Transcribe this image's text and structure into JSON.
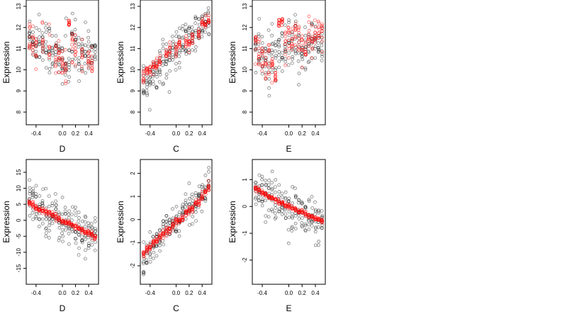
{
  "figure": {
    "background": "#ffffff",
    "colors": {
      "black_points": "#000000",
      "red_points": "#ff0000",
      "frame": "#000000"
    }
  },
  "chart_data": [
    {
      "type": "scatter",
      "ylabel": "Expression",
      "xlabel": "D",
      "xlim": [
        -0.55,
        0.55
      ],
      "ylim": [
        7.4,
        13.3
      ],
      "xticks": [
        -0.4,
        0.0,
        0.2,
        0.4
      ],
      "xtick_labels": [
        "-0.4",
        "0.0",
        "0.2",
        "0.4"
      ],
      "yticks": [
        8,
        9,
        10,
        11,
        12,
        13
      ],
      "ytick_labels": [
        "8",
        "9",
        "10",
        "11",
        "12",
        "13"
      ],
      "series": [
        {
          "color": "#000000",
          "x": [
            -0.5,
            -0.45,
            -0.4,
            -0.35,
            -0.3,
            -0.25,
            -0.2,
            -0.15,
            -0.1,
            -0.05,
            0.0,
            0.05,
            0.1,
            0.15,
            0.2,
            0.25,
            0.3,
            0.35,
            0.4,
            0.45,
            0.5
          ],
          "y": [
            11.6,
            11.4,
            11.3,
            11.5,
            11.2,
            11.3,
            11.0,
            11.1,
            10.7,
            10.4,
            10.5,
            10.4,
            10.2,
            11.1,
            11.2,
            10.8,
            10.9,
            10.7,
            11.0,
            10.9,
            10.6
          ],
          "spread": [
            0.9,
            0.8,
            1.1,
            1.0,
            1.0,
            1.1,
            1.2,
            1.3,
            1.1,
            1.0,
            1.2,
            1.4,
            1.1,
            1.2,
            1.1,
            1.0,
            1.0,
            1.1,
            1.0,
            0.9,
            0.9
          ]
        },
        {
          "color": "#ff0000",
          "x": [
            -0.5,
            -0.45,
            -0.4,
            -0.3,
            -0.2,
            -0.1,
            -0.05,
            0.0,
            0.05,
            0.1,
            0.15,
            0.2,
            0.3,
            0.4,
            0.45
          ],
          "y": [
            11.5,
            11.3,
            11.1,
            11.4,
            11.0,
            10.6,
            10.7,
            10.2,
            9.9,
            12.3,
            11.4,
            11.0,
            10.7,
            10.6,
            10.4
          ],
          "spread": [
            0.8,
            0.9,
            0.9,
            0.8,
            0.7,
            0.8,
            0.7,
            0.6,
            0.5,
            0.2,
            0.8,
            0.7,
            0.8,
            0.6,
            0.6
          ]
        }
      ]
    },
    {
      "type": "scatter",
      "ylabel": "Expression",
      "xlabel": "C",
      "xlim": [
        -0.55,
        0.55
      ],
      "ylim": [
        7.4,
        13.3
      ],
      "xticks": [
        -0.4,
        0.0,
        0.2,
        0.4
      ],
      "xtick_labels": [
        "-0.4",
        "0.0",
        "0.2",
        "0.4"
      ],
      "yticks": [
        8,
        9,
        10,
        11,
        12,
        13
      ],
      "ytick_labels": [
        "8",
        "9",
        "10",
        "11",
        "12",
        "13"
      ],
      "series": [
        {
          "color": "#000000",
          "x": [
            -0.5,
            -0.45,
            -0.4,
            -0.35,
            -0.3,
            -0.25,
            -0.2,
            -0.15,
            -0.1,
            -0.05,
            0.0,
            0.05,
            0.1,
            0.15,
            0.2,
            0.25,
            0.3,
            0.35,
            0.4,
            0.45,
            0.5
          ],
          "y": [
            9.3,
            9.5,
            9.6,
            9.8,
            10.0,
            10.2,
            10.4,
            10.5,
            10.6,
            10.8,
            10.9,
            11.0,
            11.2,
            11.3,
            11.5,
            11.6,
            11.8,
            11.9,
            12.0,
            12.2,
            12.3
          ],
          "spread": [
            0.8,
            0.9,
            0.8,
            0.8,
            0.8,
            0.8,
            0.9,
            0.9,
            0.9,
            0.8,
            0.9,
            0.9,
            0.9,
            0.9,
            0.8,
            0.9,
            0.8,
            0.8,
            0.8,
            0.8,
            0.7
          ]
        },
        {
          "color": "#ff0000",
          "x": [
            -0.5,
            -0.45,
            -0.4,
            -0.35,
            -0.3,
            -0.25,
            -0.15,
            -0.1,
            0.0,
            0.05,
            0.15,
            0.2,
            0.25,
            0.35,
            0.4,
            0.45,
            0.5
          ],
          "y": [
            9.6,
            9.9,
            10.0,
            10.1,
            10.2,
            10.4,
            10.7,
            10.9,
            11.0,
            11.2,
            11.3,
            11.3,
            11.5,
            11.8,
            12.1,
            12.2,
            12.4
          ],
          "spread": [
            0.4,
            0.3,
            0.3,
            0.3,
            0.3,
            0.3,
            0.3,
            0.3,
            0.3,
            0.3,
            0.3,
            0.3,
            0.3,
            0.3,
            0.3,
            0.3,
            0.3
          ]
        }
      ]
    },
    {
      "type": "scatter",
      "ylabel": "Expression",
      "xlabel": "E",
      "xlim": [
        -0.55,
        0.55
      ],
      "ylim": [
        7.4,
        13.3
      ],
      "xticks": [
        -0.4,
        0.0,
        0.2,
        0.4
      ],
      "xtick_labels": [
        "-0.4",
        "0.0",
        "0.2",
        "0.4"
      ],
      "yticks": [
        8,
        9,
        10,
        11,
        12,
        13
      ],
      "ytick_labels": [
        "8",
        "9",
        "10",
        "11",
        "12",
        "13"
      ],
      "series": [
        {
          "color": "#000000",
          "x": [
            -0.5,
            -0.45,
            -0.4,
            -0.35,
            -0.3,
            -0.25,
            -0.2,
            -0.15,
            -0.1,
            -0.05,
            0.0,
            0.05,
            0.1,
            0.15,
            0.2,
            0.25,
            0.3,
            0.35,
            0.4,
            0.45,
            0.5
          ],
          "y": [
            11.0,
            10.8,
            10.6,
            10.5,
            10.3,
            10.4,
            10.5,
            10.6,
            10.7,
            10.8,
            10.9,
            11.0,
            11.0,
            10.9,
            11.0,
            11.1,
            11.0,
            11.2,
            11.3,
            11.4,
            11.3
          ],
          "spread": [
            1.0,
            1.1,
            1.1,
            1.1,
            1.2,
            1.2,
            1.1,
            1.2,
            1.1,
            1.2,
            1.3,
            1.3,
            1.2,
            1.4,
            1.2,
            1.1,
            1.2,
            1.1,
            1.0,
            1.0,
            1.0
          ]
        },
        {
          "color": "#ff0000",
          "x": [
            -0.5,
            -0.45,
            -0.4,
            -0.35,
            -0.3,
            -0.25,
            -0.2,
            -0.15,
            -0.1,
            -0.05,
            0.0,
            0.05,
            0.1,
            0.15,
            0.2,
            0.25,
            0.3,
            0.35,
            0.4,
            0.45,
            0.5
          ],
          "y": [
            11.2,
            10.9,
            10.6,
            10.2,
            10.4,
            10.1,
            9.5,
            12.2,
            12.3,
            11.3,
            11.4,
            11.6,
            11.7,
            11.4,
            11.2,
            11.0,
            11.5,
            11.3,
            11.6,
            11.8,
            11.5
          ],
          "spread": [
            0.8,
            0.8,
            0.9,
            0.9,
            0.8,
            0.8,
            0.5,
            0.2,
            0.2,
            0.8,
            0.8,
            0.6,
            0.7,
            0.8,
            0.7,
            0.8,
            0.8,
            0.7,
            0.7,
            0.8,
            0.8
          ]
        }
      ]
    },
    {
      "type": "scatter",
      "ylabel": "Expression",
      "xlabel": "D",
      "xlim": [
        -0.55,
        0.55
      ],
      "ylim": [
        -20,
        19
      ],
      "xticks": [
        -0.4,
        0.0,
        0.2,
        0.4
      ],
      "xtick_labels": [
        "-0.4",
        "0.0",
        "0.2",
        "0.4"
      ],
      "yticks": [
        -15,
        -10,
        -5,
        0,
        5,
        10,
        15
      ],
      "ytick_labels": [
        "-15",
        "-10",
        "-5",
        "0",
        "5",
        "10",
        "15"
      ],
      "series": [
        {
          "color": "#000000",
          "x": [
            -0.5,
            -0.45,
            -0.4,
            -0.35,
            -0.3,
            -0.25,
            -0.2,
            -0.15,
            -0.1,
            -0.05,
            0.0,
            0.05,
            0.1,
            0.15,
            0.2,
            0.25,
            0.3,
            0.35,
            0.4,
            0.45,
            0.5
          ],
          "y": [
            7.0,
            6.0,
            5.0,
            4.5,
            3.5,
            3.0,
            2.5,
            1.5,
            1.0,
            0.0,
            -0.5,
            -1.0,
            -1.5,
            -2.0,
            -2.5,
            -3.0,
            -3.5,
            -4.0,
            -4.5,
            -5.0,
            -5.5
          ],
          "spread": [
            5.5,
            5.5,
            6.0,
            6.0,
            6.5,
            6.5,
            6.5,
            6.5,
            6.5,
            6.0,
            6.5,
            7.0,
            7.0,
            6.5,
            6.5,
            6.0,
            6.0,
            6.0,
            6.0,
            5.5,
            5.5
          ]
        },
        {
          "color": "#ff0000",
          "x": [
            -0.5,
            -0.45,
            -0.4,
            -0.35,
            -0.3,
            -0.25,
            -0.2,
            -0.15,
            -0.1,
            -0.05,
            0.0,
            0.05,
            0.1,
            0.15,
            0.2,
            0.25,
            0.3,
            0.35,
            0.4,
            0.45,
            0.5
          ],
          "y": [
            5.5,
            4.8,
            4.0,
            3.5,
            3.0,
            2.5,
            2.0,
            1.5,
            1.0,
            0.5,
            0.0,
            -0.5,
            -1.0,
            -1.5,
            -2.0,
            -2.5,
            -3.0,
            -3.5,
            -4.0,
            -4.5,
            -5.5
          ],
          "spread": [
            0.8,
            0.8,
            0.8,
            0.8,
            0.8,
            0.8,
            0.8,
            0.8,
            0.8,
            0.8,
            0.8,
            0.8,
            0.8,
            0.8,
            0.8,
            0.8,
            0.8,
            0.8,
            0.8,
            0.8,
            0.8
          ]
        }
      ]
    },
    {
      "type": "scatter",
      "ylabel": "Expression",
      "xlabel": "C",
      "xlim": [
        -0.55,
        0.55
      ],
      "ylim": [
        -2.8,
        2.6
      ],
      "xticks": [
        -0.4,
        0.0,
        0.2,
        0.4
      ],
      "xtick_labels": [
        "-0.4",
        "0.0",
        "0.2",
        "0.4"
      ],
      "yticks": [
        -2,
        -1,
        0,
        1,
        2
      ],
      "ytick_labels": [
        "-2",
        "-1",
        "0",
        "1",
        "2"
      ],
      "series": [
        {
          "color": "#000000",
          "x": [
            -0.5,
            -0.45,
            -0.4,
            -0.35,
            -0.3,
            -0.25,
            -0.2,
            -0.15,
            -0.1,
            -0.05,
            0.0,
            0.05,
            0.1,
            0.15,
            0.2,
            0.25,
            0.3,
            0.35,
            0.4,
            0.45,
            0.5
          ],
          "y": [
            -1.8,
            -1.6,
            -1.4,
            -1.2,
            -1.0,
            -0.8,
            -0.6,
            -0.4,
            -0.3,
            -0.2,
            -0.1,
            0.0,
            0.2,
            0.4,
            0.5,
            0.6,
            0.8,
            1.0,
            1.1,
            1.3,
            1.5
          ],
          "spread": [
            0.6,
            0.6,
            0.6,
            0.5,
            0.6,
            0.6,
            0.6,
            0.6,
            0.5,
            0.5,
            0.6,
            0.6,
            0.6,
            0.7,
            0.6,
            0.6,
            0.6,
            0.6,
            0.6,
            0.5,
            0.5
          ]
        },
        {
          "color": "#ff0000",
          "x": [
            -0.5,
            -0.45,
            -0.4,
            -0.35,
            -0.3,
            -0.25,
            -0.2,
            -0.15,
            -0.1,
            -0.05,
            0.0,
            0.05,
            0.1,
            0.15,
            0.2,
            0.25,
            0.3,
            0.35,
            0.4,
            0.45,
            0.5
          ],
          "y": [
            -1.5,
            -1.3,
            -1.2,
            -1.0,
            -0.9,
            -0.7,
            -0.6,
            -0.5,
            -0.4,
            -0.2,
            -0.1,
            0.0,
            0.1,
            0.3,
            0.4,
            0.5,
            0.7,
            0.8,
            1.0,
            1.2,
            1.4
          ],
          "spread": [
            0.15,
            0.15,
            0.15,
            0.15,
            0.15,
            0.15,
            0.15,
            0.15,
            0.15,
            0.15,
            0.15,
            0.15,
            0.15,
            0.15,
            0.15,
            0.15,
            0.15,
            0.15,
            0.15,
            0.15,
            0.15
          ]
        }
      ]
    },
    {
      "type": "scatter",
      "ylabel": "Expression",
      "xlabel": "E",
      "xlim": [
        -0.55,
        0.55
      ],
      "ylim": [
        -2.9,
        1.75
      ],
      "xticks": [
        -0.4,
        0.0,
        0.2,
        0.4
      ],
      "xtick_labels": [
        "-0.4",
        "0.0",
        "0.2",
        "0.4"
      ],
      "yticks": [
        -2,
        -1,
        0,
        1
      ],
      "ytick_labels": [
        "-2",
        "-1",
        "0",
        "1"
      ],
      "series": [
        {
          "color": "#000000",
          "x": [
            -0.5,
            -0.45,
            -0.4,
            -0.35,
            -0.3,
            -0.25,
            -0.2,
            -0.15,
            -0.1,
            -0.05,
            0.0,
            0.05,
            0.1,
            0.15,
            0.2,
            0.25,
            0.3,
            0.35,
            0.4,
            0.45,
            0.5
          ],
          "y": [
            0.7,
            0.6,
            0.5,
            0.45,
            0.35,
            0.3,
            0.2,
            0.15,
            0.1,
            0.0,
            -0.05,
            -0.1,
            -0.15,
            -0.2,
            -0.3,
            -0.35,
            -0.4,
            -0.5,
            -0.55,
            -0.6,
            -0.7
          ],
          "spread": [
            0.5,
            0.5,
            0.6,
            0.6,
            0.6,
            0.7,
            0.7,
            0.7,
            0.7,
            0.7,
            0.8,
            0.8,
            0.8,
            0.8,
            0.7,
            0.7,
            0.7,
            0.7,
            0.7,
            0.6,
            0.6
          ]
        },
        {
          "color": "#ff0000",
          "x": [
            -0.5,
            -0.45,
            -0.4,
            -0.35,
            -0.3,
            -0.25,
            -0.2,
            -0.15,
            -0.1,
            -0.05,
            0.0,
            0.05,
            0.1,
            0.15,
            0.2,
            0.25,
            0.3,
            0.35,
            0.4,
            0.45,
            0.5
          ],
          "y": [
            0.65,
            0.58,
            0.52,
            0.45,
            0.38,
            0.32,
            0.25,
            0.18,
            0.12,
            0.05,
            0.0,
            -0.05,
            -0.12,
            -0.18,
            -0.22,
            -0.28,
            -0.33,
            -0.38,
            -0.43,
            -0.48,
            -0.55
          ],
          "spread": [
            0.08,
            0.08,
            0.08,
            0.08,
            0.08,
            0.08,
            0.08,
            0.08,
            0.08,
            0.08,
            0.08,
            0.08,
            0.08,
            0.08,
            0.08,
            0.08,
            0.08,
            0.08,
            0.08,
            0.08,
            0.08
          ]
        }
      ]
    }
  ]
}
